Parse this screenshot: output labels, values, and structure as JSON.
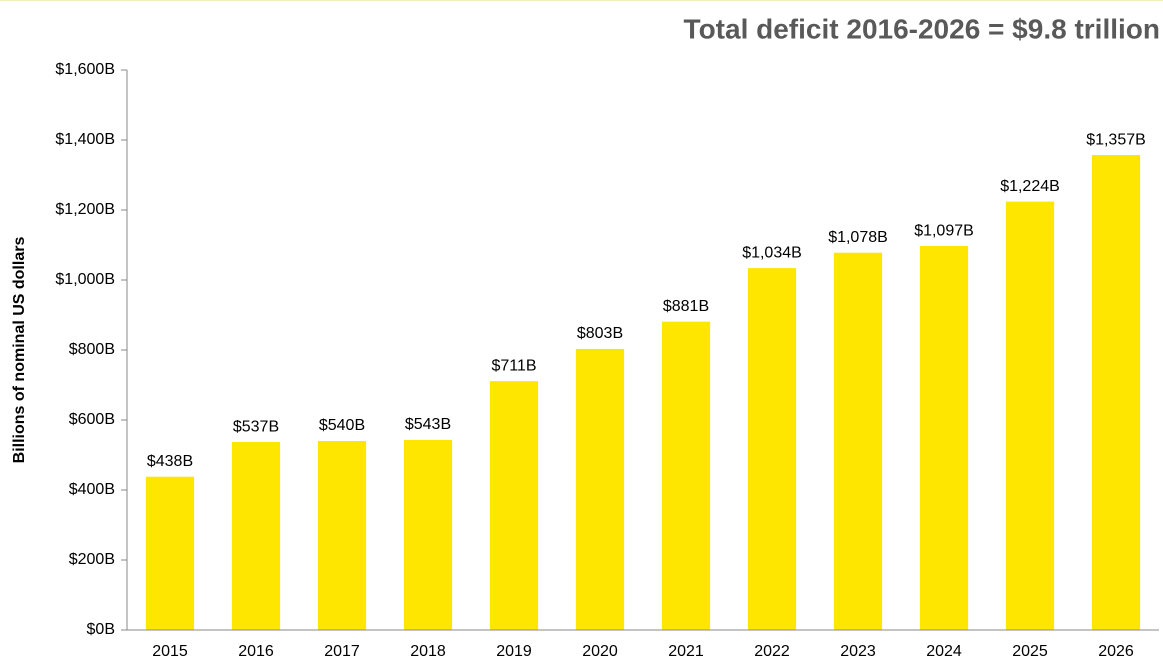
{
  "chart_data": {
    "type": "bar",
    "title": "Total deficit 2016-2026 = $9.8 trillion",
    "y_label": "Billions of nominal US dollars",
    "categories": [
      "2015",
      "2016",
      "2017",
      "2018",
      "2019",
      "2020",
      "2021",
      "2022",
      "2023",
      "2024",
      "2025",
      "2026"
    ],
    "values": [
      438,
      537,
      540,
      543,
      711,
      803,
      881,
      1034,
      1078,
      1097,
      1224,
      1357
    ],
    "value_labels": [
      "$438B",
      "$537B",
      "$540B",
      "$543B",
      "$711B",
      "$803B",
      "$881B",
      "$1,034B",
      "$1,078B",
      "$1,097B",
      "$1,224B",
      "$1,357B"
    ],
    "color": "#ffe600",
    "ylim": [
      0,
      1600
    ],
    "yticks": [
      {
        "value": 0,
        "label": "$0B"
      },
      {
        "value": 200,
        "label": "$200B"
      },
      {
        "value": 400,
        "label": "$400B"
      },
      {
        "value": 600,
        "label": "$600B"
      },
      {
        "value": 800,
        "label": "$800B"
      },
      {
        "value": 1000,
        "label": "$1,000B"
      },
      {
        "value": 1200,
        "label": "$1,200B"
      },
      {
        "value": 1400,
        "label": "$1,400B"
      },
      {
        "value": 1600,
        "label": "$1,600B"
      }
    ],
    "grid": false
  }
}
